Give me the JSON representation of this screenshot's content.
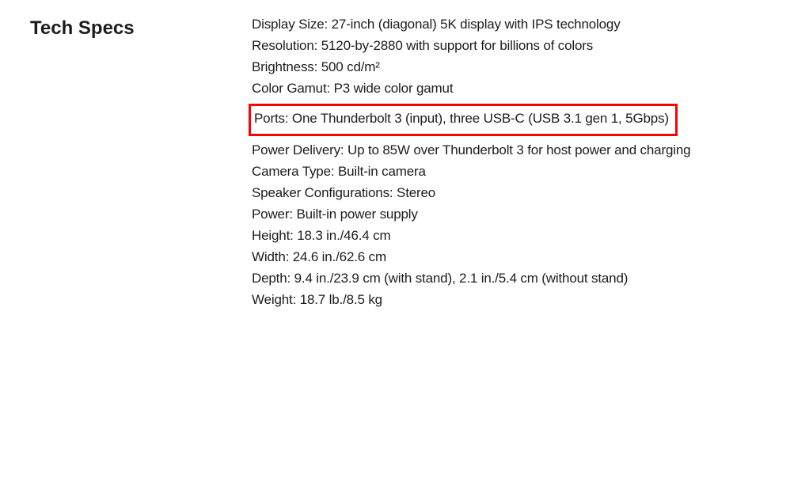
{
  "section_title": "Tech Specs",
  "specs": [
    {
      "text": "Display Size: 27-inch (diagonal) 5K display with IPS technology",
      "highlighted": false
    },
    {
      "text": "Resolution: 5120-by-2880 with support for billions of colors",
      "highlighted": false
    },
    {
      "text": "Brightness: 500 cd/m²",
      "highlighted": false
    },
    {
      "text": "Color Gamut: P3 wide color gamut",
      "highlighted": false
    },
    {
      "text": "Ports: One Thunderbolt 3 (input), three USB-C (USB 3.1 gen 1, 5Gbps)",
      "highlighted": true
    },
    {
      "text": "Power Delivery: Up to 85W over Thunderbolt 3 for host power and charging",
      "highlighted": false
    },
    {
      "text": "Camera Type: Built-in camera",
      "highlighted": false
    },
    {
      "text": "Speaker Configurations: Stereo",
      "highlighted": false
    },
    {
      "text": "Power: Built-in power supply",
      "highlighted": false
    },
    {
      "text": "Height: 18.3 in./46.4 cm",
      "highlighted": false
    },
    {
      "text": "Width: 24.6 in./62.6 cm",
      "highlighted": false
    },
    {
      "text": "Depth: 9.4 in./23.9 cm (with stand), 2.1 in./5.4 cm (without stand)",
      "highlighted": false
    },
    {
      "text": "Weight: 18.7 lb./8.5 kg",
      "highlighted": false
    }
  ],
  "styling": {
    "background_color": "#ffffff",
    "text_color": "#1d1d1f",
    "highlight_border_color": "#ff0000",
    "highlight_border_width": 3,
    "title_fontsize": 24,
    "title_fontweight": 600,
    "spec_fontsize": 17,
    "spec_fontweight": 400,
    "font_family": "-apple-system, BlinkMacSystemFont, 'Segoe UI', 'Helvetica Neue', Arial, sans-serif"
  }
}
